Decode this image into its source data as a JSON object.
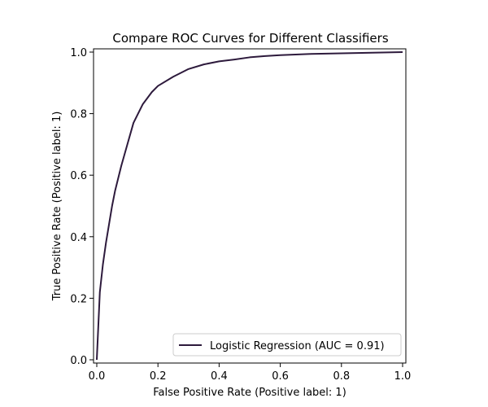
{
  "chart_data": {
    "type": "line",
    "title": "Compare ROC Curves for Different Classifiers",
    "xlabel": "False Positive Rate (Positive label: 1)",
    "ylabel": "True Positive Rate (Positive label: 1)",
    "xlim": [
      0.0,
      1.0
    ],
    "ylim": [
      0.0,
      1.0
    ],
    "x_ticks": [
      "0.0",
      "0.2",
      "0.4",
      "0.6",
      "0.8",
      "1.0"
    ],
    "y_ticks": [
      "0.0",
      "0.2",
      "0.4",
      "0.6",
      "0.8",
      "1.0"
    ],
    "grid": false,
    "legend_position": "bottom-right",
    "series": [
      {
        "name": "Logistic Regression (AUC = 0.91)",
        "color": "#2d1a3c",
        "x": [
          0.0,
          0.005,
          0.01,
          0.02,
          0.03,
          0.04,
          0.05,
          0.06,
          0.08,
          0.1,
          0.12,
          0.15,
          0.18,
          0.2,
          0.25,
          0.3,
          0.35,
          0.4,
          0.45,
          0.5,
          0.55,
          0.6,
          0.7,
          0.8,
          0.9,
          1.0
        ],
        "y": [
          0.0,
          0.11,
          0.22,
          0.31,
          0.38,
          0.44,
          0.5,
          0.55,
          0.63,
          0.7,
          0.77,
          0.83,
          0.87,
          0.89,
          0.92,
          0.945,
          0.96,
          0.97,
          0.976,
          0.983,
          0.987,
          0.99,
          0.994,
          0.996,
          0.998,
          1.0
        ]
      }
    ]
  }
}
